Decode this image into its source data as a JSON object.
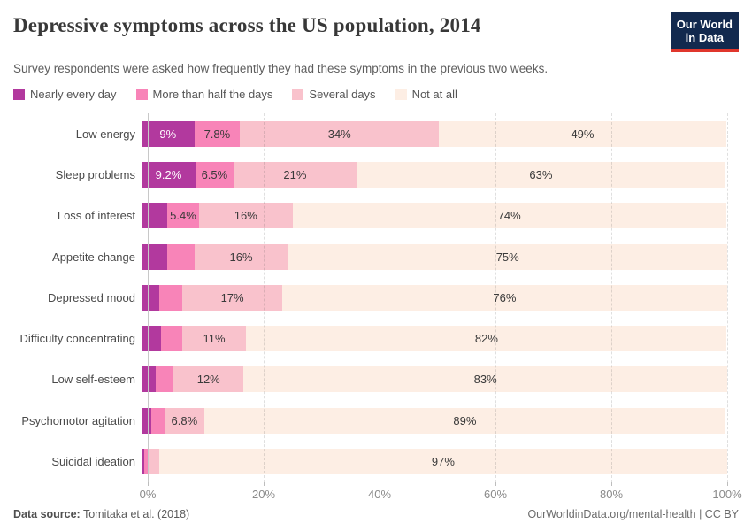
{
  "header": {
    "title": "Depressive symptoms across the US population, 2014",
    "subtitle": "Survey respondents were asked how frequently they had these symptoms in the previous two weeks.",
    "logo": {
      "line1": "Our World",
      "line2": "in Data",
      "bg_color": "#12294e",
      "accent_color": "#e0362c"
    }
  },
  "legend": {
    "items": [
      {
        "label": "Nearly every day",
        "color": "#b2399e"
      },
      {
        "label": "More than half the days",
        "color": "#f884b8"
      },
      {
        "label": "Several days",
        "color": "#f9c2cc"
      },
      {
        "label": "Not at all",
        "color": "#fdeee4"
      }
    ]
  },
  "chart_data": {
    "type": "bar",
    "orientation": "horizontal-stacked",
    "title": "Depressive symptoms across the US population, 2014",
    "subtitle": "Survey respondents were asked how frequently they had these symptoms in the previous two weeks.",
    "xlabel": "",
    "ylabel": "",
    "xlim": [
      0,
      100
    ],
    "grid": "dashed-vertical",
    "legend_position": "top",
    "categories": [
      "Low energy",
      "Sleep problems",
      "Loss of interest",
      "Appetite change",
      "Depressed mood",
      "Difficulty concentrating",
      "Low self-esteem",
      "Psychomotor agitation",
      "Suicidal ideation"
    ],
    "series": [
      {
        "name": "Nearly every day",
        "color": "#b2399e",
        "label_color": "#ffffff",
        "values": [
          9,
          9.2,
          4.4,
          4.4,
          3.0,
          3.3,
          2.4,
          1.7,
          0.4
        ],
        "labels": [
          "9%",
          "9.2%",
          "",
          "",
          "",
          "",
          "",
          "",
          ""
        ]
      },
      {
        "name": "More than half the days",
        "color": "#f884b8",
        "label_color": "#3a3a3a",
        "values": [
          7.8,
          6.5,
          5.4,
          4.6,
          4.0,
          3.6,
          3.1,
          2.2,
          0.6
        ],
        "labels": [
          "7.8%",
          "6.5%",
          "5.4%",
          "",
          "",
          "",
          "",
          "",
          ""
        ]
      },
      {
        "name": "Several days",
        "color": "#f9c2cc",
        "label_color": "#3a3a3a",
        "values": [
          34,
          21,
          16,
          16,
          17,
          11,
          12,
          6.8,
          2.0
        ],
        "labels": [
          "34%",
          "21%",
          "16%",
          "16%",
          "17%",
          "11%",
          "12%",
          "6.8%",
          ""
        ]
      },
      {
        "name": "Not at all",
        "color": "#fdeee4",
        "label_color": "#3a3a3a",
        "values": [
          49,
          63,
          74,
          75,
          76,
          82,
          83,
          89,
          97
        ],
        "labels": [
          "49%",
          "63%",
          "74%",
          "75%",
          "76%",
          "82%",
          "83%",
          "89%",
          "97%"
        ]
      }
    ],
    "x_ticks": [
      {
        "label": "0%",
        "value": 0
      },
      {
        "label": "20%",
        "value": 20
      },
      {
        "label": "40%",
        "value": 40
      },
      {
        "label": "60%",
        "value": 60
      },
      {
        "label": "80%",
        "value": 80
      },
      {
        "label": "100%",
        "value": 100
      }
    ]
  },
  "footer": {
    "source_label": "Data source:",
    "source_value": "Tomitaka et al. (2018)",
    "link": "OurWorldinData.org/mental-health",
    "separator": " | ",
    "license": "CC BY"
  }
}
